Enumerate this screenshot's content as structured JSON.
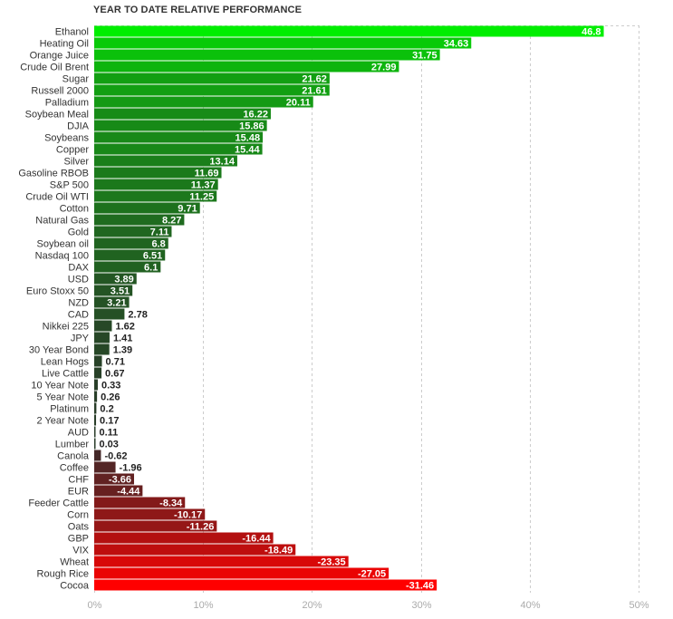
{
  "chart_data": {
    "type": "bar",
    "orientation": "horizontal",
    "title": "YEAR TO DATE RELATIVE PERFORMANCE",
    "xlim": [
      0,
      50
    ],
    "x_ticks": [
      0,
      10,
      20,
      30,
      40,
      50
    ],
    "x_tick_labels": [
      "0%",
      "10%",
      "20%",
      "30%",
      "40%",
      "50%"
    ],
    "grid": true,
    "categories": [
      "Ethanol",
      "Heating Oil",
      "Orange Juice",
      "Crude Oil Brent",
      "Sugar",
      "Russell 2000",
      "Palladium",
      "Soybean Meal",
      "DJIA",
      "Soybeans",
      "Copper",
      "Silver",
      "Gasoline RBOB",
      "S&P 500",
      "Crude Oil WTI",
      "Cotton",
      "Natural Gas",
      "Gold",
      "Soybean oil",
      "Nasdaq 100",
      "DAX",
      "USD",
      "Euro Stoxx 50",
      "NZD",
      "CAD",
      "Nikkei 225",
      "JPY",
      "30 Year Bond",
      "Lean Hogs",
      "Live Cattle",
      "10 Year Note",
      "5 Year Note",
      "Platinum",
      "2 Year Note",
      "AUD",
      "Lumber",
      "Canola",
      "Coffee",
      "CHF",
      "EUR",
      "Feeder Cattle",
      "Corn",
      "Oats",
      "GBP",
      "VIX",
      "Wheat",
      "Rough Rice",
      "Cocoa"
    ],
    "values": [
      46.8,
      34.63,
      31.75,
      27.99,
      21.62,
      21.61,
      20.11,
      16.22,
      15.86,
      15.48,
      15.44,
      13.14,
      11.69,
      11.37,
      11.25,
      9.71,
      8.27,
      7.11,
      6.8,
      6.51,
      6.1,
      3.89,
      3.51,
      3.21,
      2.78,
      1.62,
      1.41,
      1.39,
      0.71,
      0.67,
      0.33,
      0.26,
      0.2,
      0.17,
      0.11,
      0.03,
      -0.62,
      -1.96,
      -3.66,
      -4.44,
      -8.34,
      -10.17,
      -11.26,
      -16.44,
      -18.49,
      -23.35,
      -27.05,
      -31.46
    ],
    "value_labels": [
      "46.8",
      "34.63",
      "31.75",
      "27.99",
      "21.62",
      "21.61",
      "20.11",
      "16.22",
      "15.86",
      "15.48",
      "15.44",
      "13.14",
      "11.69",
      "11.37",
      "11.25",
      "9.71",
      "8.27",
      "7.11",
      "6.8",
      "6.51",
      "6.1",
      "3.89",
      "3.51",
      "3.21",
      "2.78",
      "1.62",
      "1.41",
      "1.39",
      "0.71",
      "0.67",
      "0.33",
      "0.26",
      "0.2",
      "0.17",
      "0.11",
      "0.03",
      "-0.62",
      "-1.96",
      "-3.66",
      "-4.44",
      "-8.34",
      "-10.17",
      "-11.26",
      "-16.44",
      "-18.49",
      "-23.35",
      "-27.05",
      "-31.46"
    ],
    "colors": {
      "positive_strong": "#00ee00",
      "positive_weak": "#2a3a2a",
      "negative_weak": "#3a2a2a",
      "negative_strong": "#ff0000"
    }
  }
}
